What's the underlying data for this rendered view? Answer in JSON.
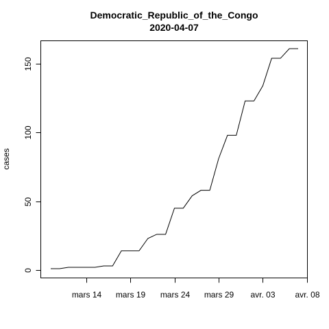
{
  "chart_data": {
    "type": "line",
    "title": "Democratic_Republic_of_the_Congo",
    "subtitle": "2020-04-07",
    "xlabel": "",
    "ylabel": "cases",
    "x_start_date": "2020-03-10",
    "x_tick_labels": [
      "mars 14",
      "mars 19",
      "mars 24",
      "mars 29",
      "avr. 03",
      "avr. 08"
    ],
    "x_tick_dates": [
      "2020-03-14",
      "2020-03-19",
      "2020-03-24",
      "2020-03-29",
      "2020-04-03",
      "2020-04-08"
    ],
    "y_ticks": [
      0,
      50,
      100,
      150
    ],
    "ylim": [
      0,
      161
    ],
    "xlim": [
      "2020-03-10",
      "2020-04-07"
    ],
    "grid": false,
    "series": [
      {
        "x": [
          "2020-03-10",
          "2020-03-11",
          "2020-03-12",
          "2020-03-13",
          "2020-03-14",
          "2020-03-15",
          "2020-03-16",
          "2020-03-17",
          "2020-03-18",
          "2020-03-19",
          "2020-03-20",
          "2020-03-21",
          "2020-03-22",
          "2020-03-23",
          "2020-03-24",
          "2020-03-25",
          "2020-03-26",
          "2020-03-27",
          "2020-03-28",
          "2020-03-29",
          "2020-03-30",
          "2020-03-31",
          "2020-04-01",
          "2020-04-02",
          "2020-04-03",
          "2020-04-04",
          "2020-04-05",
          "2020-04-06",
          "2020-04-07"
        ],
        "values": [
          1,
          1,
          2,
          2,
          2,
          2,
          3,
          3,
          14,
          14,
          14,
          23,
          26,
          26,
          45,
          45,
          54,
          58,
          58,
          81,
          98,
          98,
          123,
          123,
          134,
          154,
          154,
          161,
          161
        ]
      }
    ]
  }
}
